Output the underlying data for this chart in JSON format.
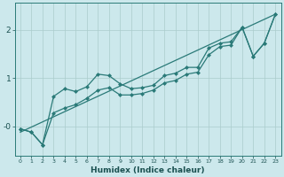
{
  "xlabel": "Humidex (Indice chaleur)",
  "bg_color": "#cce8ec",
  "grid_color": "#aacccc",
  "line_color": "#2a7a78",
  "xlim": [
    -0.5,
    23.5
  ],
  "ylim": [
    -0.6,
    2.55
  ],
  "yticks": [
    0,
    1,
    2
  ],
  "ytick_labels": [
    "-0",
    "1",
    "2"
  ],
  "xticks": [
    0,
    1,
    2,
    3,
    4,
    5,
    6,
    7,
    8,
    9,
    10,
    11,
    12,
    13,
    14,
    15,
    16,
    17,
    18,
    19,
    20,
    21,
    22,
    23
  ],
  "series1_x": [
    0,
    1,
    2,
    3,
    4,
    5,
    6,
    7,
    8,
    9,
    10,
    11,
    12,
    13,
    14,
    15,
    16,
    17,
    18,
    19,
    20,
    21,
    22,
    23
  ],
  "series1_y": [
    -0.05,
    -0.12,
    -0.38,
    0.62,
    0.78,
    0.72,
    0.82,
    1.08,
    1.05,
    0.88,
    0.78,
    0.8,
    0.85,
    1.05,
    1.1,
    1.22,
    1.22,
    1.62,
    1.72,
    1.75,
    2.05,
    1.45,
    1.72,
    2.32
  ],
  "series2_x": [
    0,
    1,
    2,
    3,
    4,
    5,
    6,
    7,
    8,
    9,
    10,
    11,
    12,
    13,
    14,
    15,
    16,
    17,
    18,
    19,
    20,
    21,
    22,
    23
  ],
  "series2_y": [
    -0.05,
    -0.12,
    -0.38,
    0.28,
    0.38,
    0.45,
    0.58,
    0.75,
    0.8,
    0.65,
    0.65,
    0.68,
    0.75,
    0.9,
    0.95,
    1.08,
    1.12,
    1.48,
    1.65,
    1.68,
    2.05,
    1.45,
    1.72,
    2.32
  ],
  "series3_x": [
    0,
    23
  ],
  "series3_y": [
    -0.12,
    2.32
  ],
  "marker_size": 2.5,
  "linewidth": 0.9
}
